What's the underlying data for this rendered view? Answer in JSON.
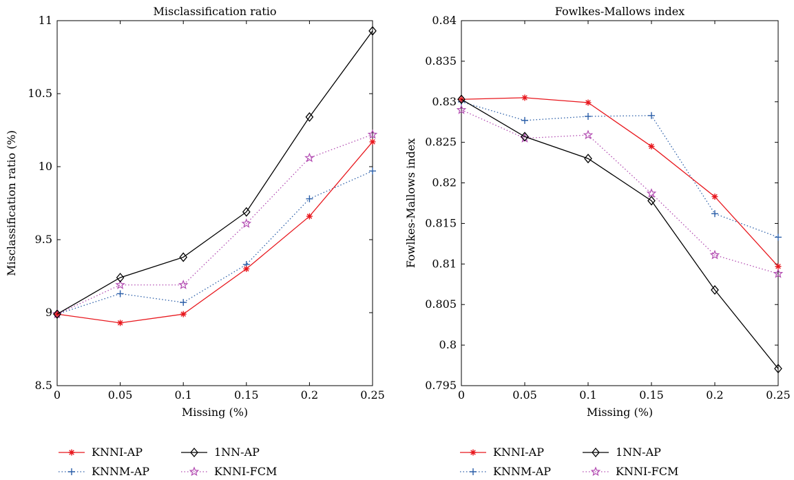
{
  "chart_data": [
    {
      "type": "line",
      "title": "Misclassification ratio",
      "xlabel": "Missing (%)",
      "ylabel": "Misclassification ratio (%)",
      "x": [
        0,
        0.05,
        0.1,
        0.15,
        0.2,
        0.25
      ],
      "xticks": [
        "0",
        "0.05",
        "0.1",
        "0.15",
        "0.2",
        "0.25"
      ],
      "yticks": [
        "8.5",
        "9",
        "9.5",
        "10",
        "10.5",
        "11"
      ],
      "xlim": [
        0,
        0.25
      ],
      "ylim": [
        8.5,
        11
      ],
      "grid": false,
      "legend_placement": "bottom",
      "series": [
        {
          "name": "KNNI-AP",
          "values": [
            8.99,
            8.93,
            8.99,
            9.3,
            9.66,
            10.17
          ],
          "color": "#e8161c",
          "dash": "solid",
          "marker": "asterisk"
        },
        {
          "name": "1NN-AP",
          "values": [
            8.99,
            9.24,
            9.38,
            9.69,
            10.34,
            10.93
          ],
          "color": "#000000",
          "dash": "solid",
          "marker": "diamond"
        },
        {
          "name": "KNNM-AP",
          "values": [
            8.99,
            9.13,
            9.07,
            9.33,
            9.78,
            9.97
          ],
          "color": "#2a5ea8",
          "dash": "dotted",
          "marker": "plus"
        },
        {
          "name": "KNNI-FCM",
          "values": [
            8.99,
            9.19,
            9.19,
            9.61,
            10.06,
            10.22
          ],
          "color": "#b24bb1",
          "dash": "dotted",
          "marker": "star"
        }
      ]
    },
    {
      "type": "line",
      "title": "Fowlkes-Mallows index",
      "xlabel": "Missing (%)",
      "ylabel": "Fowlkes-Mallows index",
      "x": [
        0,
        0.05,
        0.1,
        0.15,
        0.2,
        0.25
      ],
      "xticks": [
        "0",
        "0.05",
        "0.1",
        "0.15",
        "0.2",
        "0.25"
      ],
      "yticks": [
        "0.795",
        "0.8",
        "0.805",
        "0.81",
        "0.815",
        "0.82",
        "0.825",
        "0.83",
        "0.835",
        "0.84"
      ],
      "xlim": [
        0,
        0.25
      ],
      "ylim": [
        0.795,
        0.84
      ],
      "grid": false,
      "legend_placement": "bottom",
      "series": [
        {
          "name": "KNNI-AP",
          "values": [
            0.8303,
            0.8305,
            0.8299,
            0.8245,
            0.8183,
            0.8097
          ],
          "color": "#e8161c",
          "dash": "solid",
          "marker": "asterisk"
        },
        {
          "name": "1NN-AP",
          "values": [
            0.8303,
            0.8257,
            0.823,
            0.8178,
            0.8068,
            0.7971
          ],
          "color": "#000000",
          "dash": "solid",
          "marker": "diamond"
        },
        {
          "name": "KNNM-AP",
          "values": [
            0.83,
            0.8277,
            0.8282,
            0.8283,
            0.8162,
            0.8133
          ],
          "color": "#2a5ea8",
          "dash": "dotted",
          "marker": "plus"
        },
        {
          "name": "KNNI-FCM",
          "values": [
            0.829,
            0.8255,
            0.8259,
            0.8187,
            0.8111,
            0.8088
          ],
          "color": "#b24bb1",
          "dash": "dotted",
          "marker": "star"
        }
      ]
    }
  ]
}
